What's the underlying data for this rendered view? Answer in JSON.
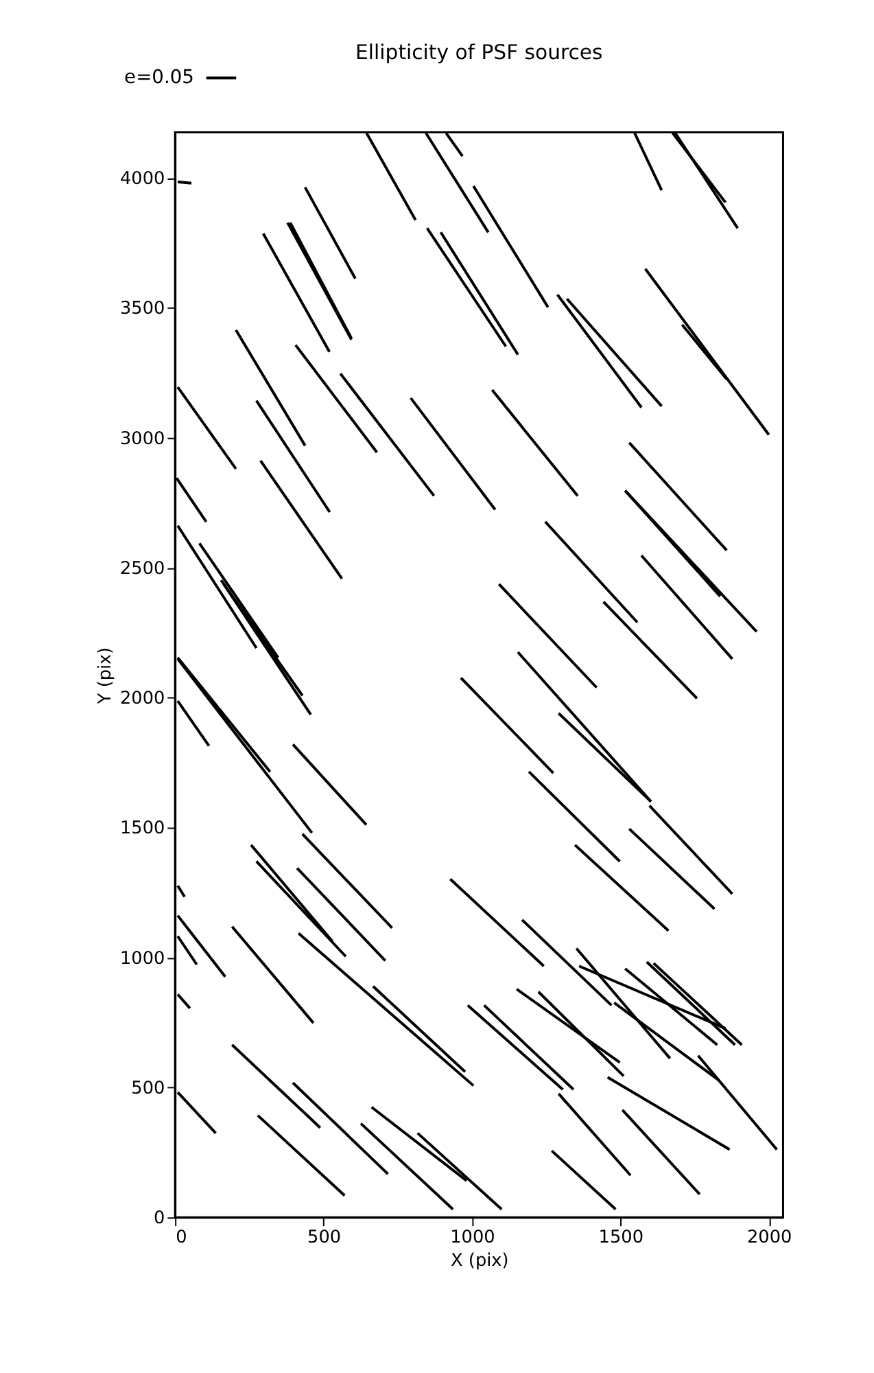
{
  "chart_data": {
    "type": "line",
    "title": "Ellipticity of PSF sources",
    "xlabel": "X (pix)",
    "ylabel": "Y (pix)",
    "annotations": [
      "e=0.05"
    ],
    "color": "#000000",
    "marker": "none",
    "grid": false,
    "legend": false,
    "xlim": [
      0,
      2048
    ],
    "ylim": [
      0,
      4176
    ],
    "xticks": [
      0,
      500,
      1000,
      1500,
      2000
    ],
    "yticks": [
      0,
      500,
      1000,
      1500,
      2000,
      2500,
      3000,
      3500,
      4000
    ],
    "series": [
      {
        "x": [
          9,
          55
        ],
        "values": [
          3985,
          3980
        ]
      },
      {
        "x": [
          645,
          810
        ],
        "values": [
          4173,
          3838
        ]
      },
      {
        "x": [
          845,
          1055
        ],
        "values": [
          4173,
          3791
        ]
      },
      {
        "x": [
          913,
          968
        ],
        "values": [
          4173,
          4084
        ]
      },
      {
        "x": [
          1005,
          1256
        ],
        "values": [
          3969,
          3503
        ]
      },
      {
        "x": [
          438,
          607
        ],
        "values": [
          3964,
          3613
        ]
      },
      {
        "x": [
          379,
          594
        ],
        "values": [
          3828,
          3378
        ]
      },
      {
        "x": [
          388,
          594
        ],
        "values": [
          3828,
          3383
        ]
      },
      {
        "x": [
          297,
          520
        ],
        "values": [
          3786,
          3331
        ]
      },
      {
        "x": [
          205,
          438
        ],
        "values": [
          3415,
          2970
        ]
      },
      {
        "x": [
          406,
          680
        ],
        "values": [
          3357,
          2944
        ]
      },
      {
        "x": [
          557,
          872
        ],
        "values": [
          3247,
          2777
        ]
      },
      {
        "x": [
          794,
          1078
        ],
        "values": [
          3153,
          2724
        ]
      },
      {
        "x": [
          1548,
          1639
        ],
        "values": [
          4173,
          3953
        ]
      },
      {
        "x": [
          1676,
          1854
        ],
        "values": [
          4173,
          3906
        ]
      },
      {
        "x": [
          1685,
          1895
        ],
        "values": [
          4173,
          3807
        ]
      },
      {
        "x": [
          1584,
          2000
        ],
        "values": [
          3650,
          3012
        ]
      },
      {
        "x": [
          1708,
          1858
        ],
        "values": [
          3435,
          3226
        ]
      },
      {
        "x": [
          1288,
          1571
        ],
        "values": [
          3551,
          3117
        ]
      },
      {
        "x": [
          1320,
          1639
        ],
        "values": [
          3535,
          3122
        ]
      },
      {
        "x": [
          849,
          1114
        ],
        "values": [
          3807,
          3352
        ]
      },
      {
        "x": [
          895,
          1155
        ],
        "values": [
          3791,
          3320
        ]
      },
      {
        "x": [
          1068,
          1356
        ],
        "values": [
          3184,
          2777
        ]
      },
      {
        "x": [
          1530,
          1858
        ],
        "values": [
          2981,
          2567
        ]
      },
      {
        "x": [
          1516,
          1836
        ],
        "values": [
          2797,
          2390
        ]
      },
      {
        "x": [
          1516,
          1959
        ],
        "values": [
          2797,
          2254
        ]
      },
      {
        "x": [
          1571,
          1877
        ],
        "values": [
          2547,
          2149
        ]
      },
      {
        "x": [
          1247,
          1557
        ],
        "values": [
          2677,
          2290
        ]
      },
      {
        "x": [
          1443,
          1758
        ],
        "values": [
          2369,
          1997
        ]
      },
      {
        "x": [
          1091,
          1420
        ],
        "values": [
          2437,
          2039
        ]
      },
      {
        "x": [
          1155,
          1603
        ],
        "values": [
          2175,
          1600
        ]
      },
      {
        "x": [
          1292,
          1603
        ],
        "values": [
          1940,
          1600
        ]
      },
      {
        "x": [
          963,
          1274
        ],
        "values": [
          2076,
          1710
        ]
      },
      {
        "x": [
          1192,
          1498
        ],
        "values": [
          1715,
          1370
        ]
      },
      {
        "x": [
          1598,
          1877
        ],
        "values": [
          1584,
          1245
        ]
      },
      {
        "x": [
          1530,
          1817
        ],
        "values": [
          1495,
          1187
        ]
      },
      {
        "x": [
          1347,
          1662
        ],
        "values": [
          1433,
          1103
        ]
      },
      {
        "x": [
          9,
          205
        ],
        "values": [
          3195,
          2881
        ]
      },
      {
        "x": [
          274,
          521
        ],
        "values": [
          3143,
          2714
        ]
      },
      {
        "x": [
          288,
          562
        ],
        "values": [
          2912,
          2458
        ]
      },
      {
        "x": [
          5,
          105
        ],
        "values": [
          2845,
          2677
        ]
      },
      {
        "x": [
          9,
          274
        ],
        "values": [
          2662,
          2191
        ]
      },
      {
        "x": [
          82,
          347
        ],
        "values": [
          2594,
          2154
        ]
      },
      {
        "x": [
          155,
          429
        ],
        "values": [
          2452,
          2008
        ]
      },
      {
        "x": [
          164,
          457
        ],
        "values": [
          2437,
          1935
        ]
      },
      {
        "x": [
          9,
          320
        ],
        "values": [
          2154,
          1715
        ]
      },
      {
        "x": [
          9,
          461
        ],
        "values": [
          2149,
          1480
        ]
      },
      {
        "x": [
          9,
          114
        ],
        "values": [
          1987,
          1815
        ]
      },
      {
        "x": [
          397,
          644
        ],
        "values": [
          1820,
          1511
        ]
      },
      {
        "x": [
          429,
          731
        ],
        "values": [
          1475,
          1114
        ]
      },
      {
        "x": [
          256,
          530
        ],
        "values": [
          1433,
          1062
        ]
      },
      {
        "x": [
          274,
          575
        ],
        "values": [
          1370,
          1004
        ]
      },
      {
        "x": [
          411,
          708
        ],
        "values": [
          1344,
          988
        ]
      },
      {
        "x": [
          9,
          32
        ],
        "values": [
          1276,
          1234
        ]
      },
      {
        "x": [
          9,
          169
        ],
        "values": [
          1161,
          926
        ]
      },
      {
        "x": [
          9,
          73
        ],
        "values": [
          1082,
          973
        ]
      },
      {
        "x": [
          192,
          466
        ],
        "values": [
          1119,
          748
        ]
      },
      {
        "x": [
          416,
          1005
        ],
        "values": [
          1093,
          507
        ]
      },
      {
        "x": [
          667,
          977
        ],
        "values": [
          889,
          560
        ]
      },
      {
        "x": [
          9,
          50
        ],
        "values": [
          858,
          805
        ]
      },
      {
        "x": [
          927,
          1242
        ],
        "values": [
          1302,
          967
        ]
      },
      {
        "x": [
          986,
          1306
        ],
        "values": [
          816,
          492
        ]
      },
      {
        "x": [
          192,
          489
        ],
        "values": [
          664,
          345
        ]
      },
      {
        "x": [
          397,
          717
        ],
        "values": [
          518,
          167
        ]
      },
      {
        "x": [
          279,
          571
        ],
        "values": [
          392,
          84
        ]
      },
      {
        "x": [
          9,
          137
        ],
        "values": [
          481,
          324
        ]
      },
      {
        "x": [
          626,
          936
        ],
        "values": [
          361,
          31
        ]
      },
      {
        "x": [
          662,
          982
        ],
        "values": [
          424,
          141
        ]
      },
      {
        "x": [
          817,
          1100
        ],
        "values": [
          324,
          31
        ]
      },
      {
        "x": [
          1169,
          1470
        ],
        "values": [
          1145,
          816
        ]
      },
      {
        "x": [
          1352,
          1667
        ],
        "values": [
          1035,
          612
        ]
      },
      {
        "x": [
          1361,
          1854
        ],
        "values": [
          967,
          727
        ]
      },
      {
        "x": [
          1516,
          1826
        ],
        "values": [
          957,
          664
        ]
      },
      {
        "x": [
          1589,
          1886
        ],
        "values": [
          983,
          664
        ]
      },
      {
        "x": [
          1612,
          1909
        ],
        "values": [
          978,
          664
        ]
      },
      {
        "x": [
          1479,
          1831
        ],
        "values": [
          826,
          528
        ]
      },
      {
        "x": [
          1762,
          2027
        ],
        "values": [
          622,
          261
        ]
      },
      {
        "x": [
          1151,
          1498
        ],
        "values": [
          878,
          596
        ]
      },
      {
        "x": [
          1224,
          1511
        ],
        "values": [
          868,
          544
        ]
      },
      {
        "x": [
          1041,
          1342
        ],
        "values": [
          816,
          492
        ]
      },
      {
        "x": [
          1457,
          1868
        ],
        "values": [
          539,
          261
        ]
      },
      {
        "x": [
          1292,
          1534
        ],
        "values": [
          476,
          162
        ]
      },
      {
        "x": [
          1507,
          1767
        ],
        "values": [
          413,
          89
        ]
      },
      {
        "x": [
          1269,
          1484
        ],
        "values": [
          256,
          31
        ]
      }
    ]
  }
}
